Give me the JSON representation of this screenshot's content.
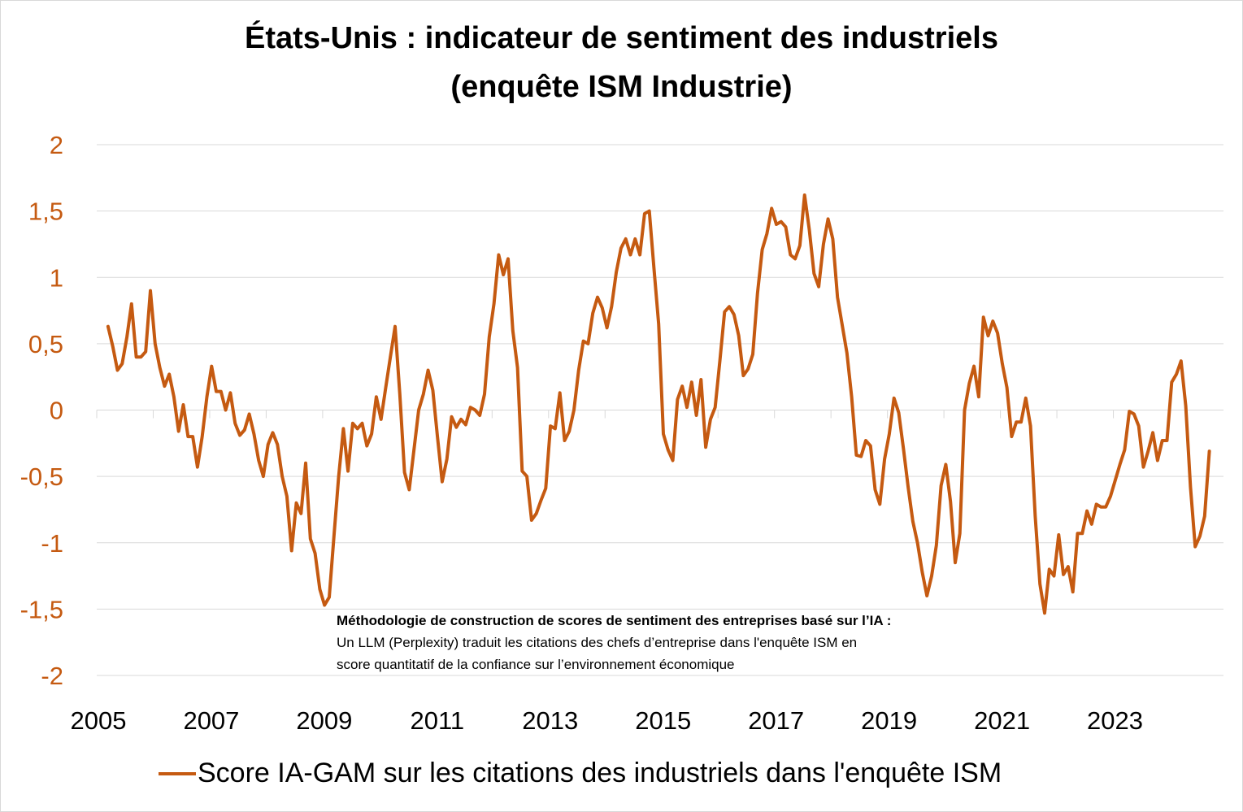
{
  "title_line1": "États-Unis : indicateur de sentiment des  industriels",
  "title_line2": "(enquête ISM Industrie)",
  "note": {
    "heading": "Méthodologie de construction de scores de sentiment des entreprises basé sur l’IA :",
    "line1": "Un LLM (Perplexity) traduit les citations des chefs d’entreprise dans l'enquête ISM en",
    "line2": "score quantitatif de la confiance sur l’environnement économique"
  },
  "colors": {
    "series": "#c55a11",
    "grid": "#d9d9d9"
  },
  "chart_data": {
    "type": "line",
    "title": "États-Unis : indicateur de sentiment des  industriels (enquête ISM Industrie)",
    "xlabel": "",
    "ylabel": "",
    "ylim": [
      -2,
      2
    ],
    "xlim": [
      2005,
      2024.95
    ],
    "y_ticks": [
      2,
      1.5,
      1,
      0.5,
      0,
      -0.5,
      -1,
      -1.5,
      -2
    ],
    "y_tick_labels": [
      "2",
      "1,5",
      "1",
      "0,5",
      "0",
      "-0,5",
      "-1",
      "-1,5",
      "-2"
    ],
    "x_ticks": [
      2005,
      2007,
      2009,
      2011,
      2013,
      2015,
      2017,
      2019,
      2021,
      2023
    ],
    "x_tick_labels": [
      "2005",
      "2007",
      "2009",
      "2011",
      "2013",
      "2015",
      "2017",
      "2019",
      "2021",
      "2023"
    ],
    "grid": true,
    "legend_position": "bottom",
    "series": [
      {
        "name": "Score IA-GAM sur les citations des industriels dans l'enquête ISM",
        "x_start": 2005.2,
        "x_step": 0.08333,
        "values": [
          0.63,
          0.48,
          0.3,
          0.35,
          0.55,
          0.8,
          0.4,
          0.4,
          0.44,
          0.9,
          0.5,
          0.32,
          0.18,
          0.27,
          0.1,
          -0.16,
          0.04,
          -0.2,
          -0.2,
          -0.43,
          -0.2,
          0.1,
          0.33,
          0.14,
          0.14,
          0.0,
          0.13,
          -0.1,
          -0.19,
          -0.15,
          -0.03,
          -0.18,
          -0.38,
          -0.5,
          -0.26,
          -0.17,
          -0.26,
          -0.5,
          -0.65,
          -1.06,
          -0.7,
          -0.78,
          -0.4,
          -0.97,
          -1.08,
          -1.35,
          -1.47,
          -1.41,
          -0.95,
          -0.5,
          -0.14,
          -0.46,
          -0.1,
          -0.14,
          -0.1,
          -0.27,
          -0.18,
          0.1,
          -0.07,
          0.17,
          0.4,
          0.63,
          0.12,
          -0.47,
          -0.6,
          -0.3,
          0.0,
          0.12,
          0.3,
          0.15,
          -0.2,
          -0.54,
          -0.37,
          -0.05,
          -0.13,
          -0.07,
          -0.11,
          0.02,
          0.0,
          -0.04,
          0.12,
          0.55,
          0.8,
          1.17,
          1.02,
          1.14,
          0.6,
          0.32,
          -0.46,
          -0.5,
          -0.83,
          -0.78,
          -0.68,
          -0.59,
          -0.12,
          -0.14,
          0.13,
          -0.23,
          -0.16,
          0.0,
          0.3,
          0.52,
          0.5,
          0.73,
          0.85,
          0.77,
          0.62,
          0.78,
          1.04,
          1.22,
          1.29,
          1.17,
          1.29,
          1.17,
          1.48,
          1.5,
          1.07,
          0.65,
          -0.18,
          -0.3,
          -0.38,
          0.08,
          0.18,
          0.02,
          0.21,
          -0.04,
          0.23,
          -0.28,
          -0.07,
          0.02,
          0.37,
          0.74,
          0.78,
          0.72,
          0.56,
          0.26,
          0.31,
          0.42,
          0.88,
          1.21,
          1.33,
          1.52,
          1.4,
          1.42,
          1.38,
          1.17,
          1.14,
          1.24,
          1.62,
          1.36,
          1.03,
          0.93,
          1.25,
          1.44,
          1.29,
          0.85,
          0.64,
          0.43,
          0.1,
          -0.34,
          -0.35,
          -0.23,
          -0.27,
          -0.6,
          -0.71,
          -0.37,
          -0.18,
          0.09,
          -0.02,
          -0.29,
          -0.58,
          -0.84,
          -1.0,
          -1.22,
          -1.4,
          -1.25,
          -1.02,
          -0.57,
          -0.41,
          -0.69,
          -1.15,
          -0.93,
          0.0,
          0.2,
          0.33,
          0.1,
          0.7,
          0.56,
          0.67,
          0.58,
          0.35,
          0.17,
          -0.2,
          -0.09,
          -0.09,
          0.09,
          -0.12,
          -0.8,
          -1.31,
          -1.53,
          -1.2,
          -1.25,
          -0.94,
          -1.24,
          -1.18,
          -1.37,
          -0.93,
          -0.93,
          -0.76,
          -0.86,
          -0.71,
          -0.73,
          -0.73,
          -0.65,
          -0.53,
          -0.41,
          -0.3,
          -0.01,
          -0.03,
          -0.12,
          -0.43,
          -0.31,
          -0.17,
          -0.38,
          -0.23,
          -0.23,
          0.21,
          0.27,
          0.37,
          0.03,
          -0.58,
          -1.03,
          -0.95,
          -0.8,
          -0.31
        ]
      }
    ]
  },
  "legend_label": "Score IA-GAM sur les citations des industriels dans l'enquête ISM"
}
